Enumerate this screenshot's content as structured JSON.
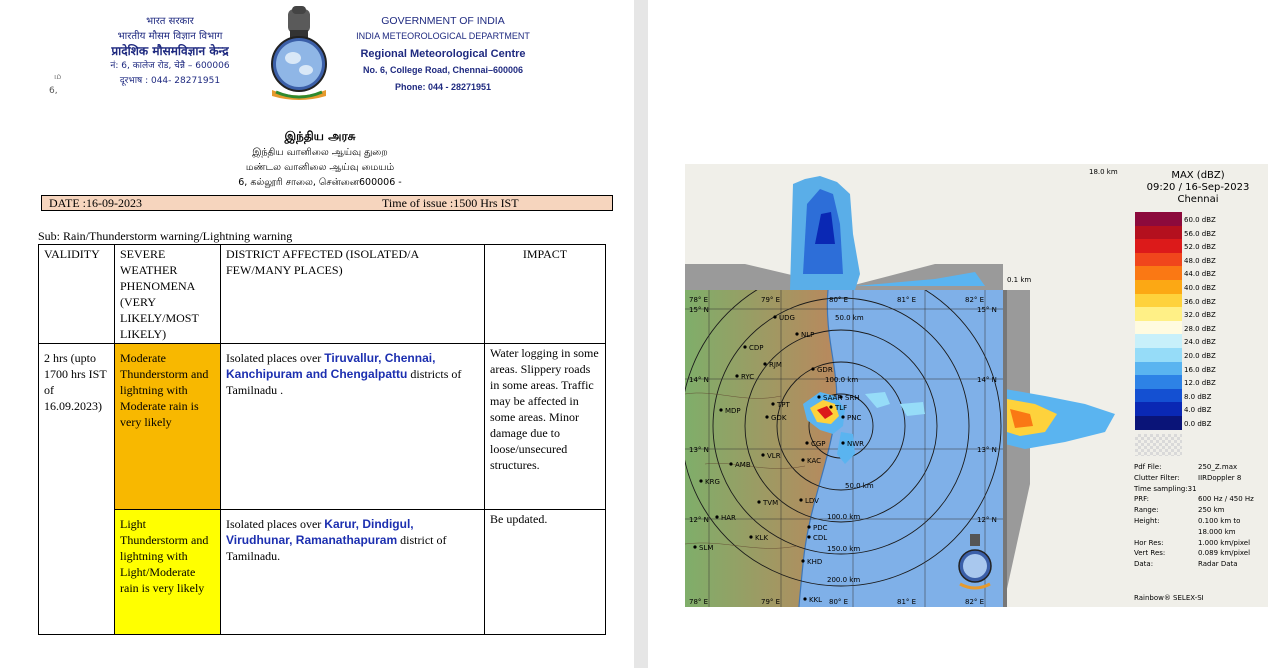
{
  "left_page": {
    "header_hindi": {
      "line1": "भारत सरकार",
      "line2": "भारतीय मौसम विज्ञान विभाग",
      "line3": "प्रादेशिक मौसमविज्ञान केन्द्र",
      "line4": "नं: 6, कालेज रोड, चेन्नै – 600006",
      "line5": "दूरभाष : 044- 28271951"
    },
    "stray_marks": {
      "m1": "ம",
      "m2": "6,"
    },
    "header_english": {
      "line1": "GOVERNMENT OF INDIA",
      "line2": "INDIA METEOROLOGICAL DEPARTMENT",
      "line3": "Regional Meteorological Centre",
      "line4": "No. 6, College Road, Chennai–600006",
      "line5": "Phone:  044 - 28271951"
    },
    "header_tamil": {
      "line1": "இந்திய அரசு",
      "line2": "இந்திய வானிலை ஆய்வு துறை",
      "line3": "மண்டல வானிலை ஆய்வு மையம்",
      "line4": "6, கல்லூரி சாலை, சென்னை600006 -"
    },
    "date_bar": {
      "date": "DATE :16-09-2023",
      "issue": "Time of issue :1500  Hrs IST"
    },
    "subject": "Sub: Rain/Thunderstorm warning/Lightning warning",
    "table": {
      "headers": {
        "validity": "VALIDITY",
        "phenomena": "SEVERE WEATHER PHENOMENA (VERY LIKELY/MOST LIKELY)",
        "district": "DISTRICT AFFECTED (ISOLATED/A FEW/MANY PLACES)",
        "impact": "IMPACT"
      },
      "row1": {
        "validity": "2 hrs (upto 1700 hrs IST of 16.09.2023)",
        "phenomena": "Moderate Thunderstorm and lightning with Moderate rain is very likely",
        "district_prefix": "Isolated places over ",
        "district_bold": "Tiruvallur, Chennai, Kanchipuram and Chengalpattu",
        "district_suffix": " districts of Tamilnadu .",
        "impact": "Water logging in some areas. Slippery roads in some areas. Traffic may be affected in some areas. Minor damage due to loose/unsecured structures."
      },
      "row2": {
        "phenomena": "Light Thunderstorm and lightning with Light/Moderate rain is very likely",
        "district_prefix": "Isolated places over ",
        "district_bold": "Karur, Dindigul, Virudhunar, Ramanathapuram",
        "district_suffix": " district of Tamilnadu.",
        "impact": "Be updated."
      }
    },
    "colors": {
      "orange_highlight": "#f8b800",
      "yellow_highlight": "#ffff00",
      "date_bar_bg": "#f6d5be",
      "header_blue": "#1f2a80",
      "district_blue": "#1c2fb0"
    },
    "emblem_icon": "ashoka-emblem-icon"
  },
  "right_page": {
    "radar": {
      "title": "MAX (dBZ)",
      "datetime": "09:20 / 16-Sep-2023",
      "location": "Chennai",
      "height_top": "18.0 km",
      "height_mid": "0.1 km",
      "scale": [
        {
          "label": "60.0 dBZ",
          "color": "#8c0a3c"
        },
        {
          "label": "56.0 dBZ",
          "color": "#b4101e"
        },
        {
          "label": "52.0 dBZ",
          "color": "#dc1a1a"
        },
        {
          "label": "48.0 dBZ",
          "color": "#f0461c"
        },
        {
          "label": "44.0 dBZ",
          "color": "#fa7814"
        },
        {
          "label": "40.0 dBZ",
          "color": "#fca814"
        },
        {
          "label": "36.0 dBZ",
          "color": "#fed23c"
        },
        {
          "label": "32.0 dBZ",
          "color": "#fff086"
        },
        {
          "label": "28.0 dBZ",
          "color": "#fffbe0"
        },
        {
          "label": "24.0 dBZ",
          "color": "#c8f0fa"
        },
        {
          "label": "20.0 dBZ",
          "color": "#96dcf8"
        },
        {
          "label": "16.0 dBZ",
          "color": "#5ab4f0"
        },
        {
          "label": "12.0 dBZ",
          "color": "#2d82e6"
        },
        {
          "label": "8.0 dBZ",
          "color": "#1450d2"
        },
        {
          "label": "4.0 dBZ",
          "color": "#0a28b4"
        },
        {
          "label": "0.0 dBZ",
          "color": "#0a1478"
        }
      ],
      "info": [
        {
          "key": "Pdf File:",
          "value": "250_Z.max"
        },
        {
          "key": "Clutter Filter:",
          "value": "IIRDoppler 8"
        },
        {
          "key": "Time sampling:31",
          "value": ""
        },
        {
          "key": "PRF:",
          "value": "600 Hz / 450 Hz"
        },
        {
          "key": "Range:",
          "value": "250 km"
        },
        {
          "key": "Height:",
          "value": "0.100 km to"
        },
        {
          "key": "",
          "value": "18.000 km"
        },
        {
          "key": "Hor Res:",
          "value": "1.000 km/pixel"
        },
        {
          "key": "Vert Res:",
          "value": "0.089 km/pixel"
        },
        {
          "key": "Data:",
          "value": "Radar Data"
        }
      ],
      "brand": "Rainbow® SELEX-SI",
      "lon_labels": [
        "78° E",
        "79° E",
        "80° E",
        "81° E",
        "82° E"
      ],
      "lat_labels": [
        "15° N",
        "14° N",
        "13° N",
        "12° N"
      ],
      "range_labels": [
        "50.0 km",
        "100.0 km",
        "150.0 km",
        "200.0 km"
      ],
      "places": [
        "UDG",
        "NLP",
        "CDP",
        "RJM",
        "RYC",
        "GDR",
        "TPT",
        "MDP",
        "GDK",
        "SRH",
        "AMB",
        "VLR",
        "KAC",
        "CGP",
        "KRG",
        "TVM",
        "LDV",
        "HAR",
        "KLK",
        "PDC",
        "CDL",
        "SLM",
        "KHD",
        "KKL",
        "SAAR",
        "PNC",
        "NWR",
        "TLF"
      ]
    }
  }
}
